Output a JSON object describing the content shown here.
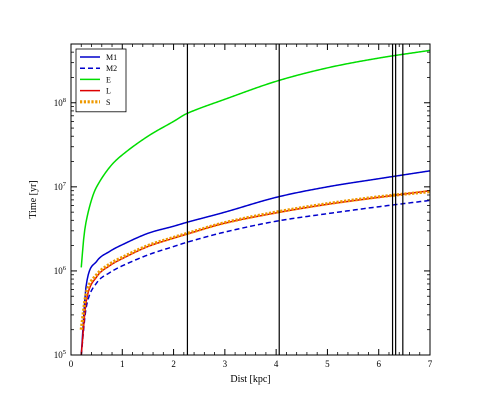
{
  "chart_data": {
    "type": "line",
    "title": "",
    "xlabel": "Dist [kpc]",
    "ylabel": "Time [yr]",
    "xlim": [
      0,
      7
    ],
    "ylim": [
      100000,
      500000000
    ],
    "y_scale": "log",
    "grid": false,
    "legend_position": "top-left",
    "x_ticks": [
      0,
      1,
      2,
      3,
      4,
      5,
      6,
      7
    ],
    "x_tick_labels": [
      "0",
      "1",
      "2",
      "3",
      "4",
      "5",
      "6",
      "7"
    ],
    "y_ticks": [
      100000,
      1000000,
      10000000,
      100000000
    ],
    "y_tick_labels": [
      {
        "base": "10",
        "exp": "5"
      },
      {
        "base": "10",
        "exp": "6"
      },
      {
        "base": "10",
        "exp": "7"
      },
      {
        "base": "10",
        "exp": "8"
      }
    ],
    "vertical_lines": [
      2.27,
      4.06,
      6.27,
      6.33,
      6.47
    ],
    "series": [
      {
        "name": "M1",
        "color": "#0000cc",
        "dash": "solid",
        "x": [
          0.2,
          0.3,
          0.5,
          0.75,
          1.0,
          1.5,
          2.0,
          2.27,
          3.0,
          4.0,
          5.0,
          6.0,
          7.0
        ],
        "y": [
          100000,
          700000,
          1300000,
          1700000,
          2050000,
          2800000,
          3400000,
          3800000,
          5000000,
          7500000,
          10000000,
          12500000,
          15500000
        ]
      },
      {
        "name": "M2",
        "color": "#0000cc",
        "dash": "dashed",
        "x": [
          0.2,
          0.3,
          0.5,
          0.75,
          1.0,
          1.5,
          2.0,
          2.27,
          3.0,
          4.0,
          5.0,
          6.0,
          7.0
        ],
        "y": [
          100000,
          380000,
          720000,
          950000,
          1150000,
          1550000,
          1950000,
          2200000,
          2900000,
          3900000,
          4800000,
          5800000,
          6900000
        ]
      },
      {
        "name": "E",
        "color": "#00dd00",
        "dash": "solid",
        "x": [
          0.2,
          0.25,
          0.3,
          0.4,
          0.5,
          0.75,
          1.0,
          1.5,
          2.0,
          2.27,
          3.0,
          4.0,
          5.0,
          6.0,
          7.0
        ],
        "y": [
          1100000,
          2500000,
          4000000,
          7000000,
          10000000,
          17000000,
          24000000,
          40000000,
          60000000,
          75000000,
          110000000,
          180000000,
          260000000,
          340000000,
          420000000
        ]
      },
      {
        "name": "L",
        "color": "#dd0000",
        "dash": "solid",
        "x": [
          0.2,
          0.3,
          0.5,
          0.75,
          1.0,
          1.5,
          2.0,
          2.27,
          3.0,
          4.0,
          5.0,
          6.0,
          7.0
        ],
        "y": [
          100000,
          450000,
          850000,
          1150000,
          1400000,
          1950000,
          2450000,
          2750000,
          3700000,
          4900000,
          6200000,
          7500000,
          9000000
        ]
      },
      {
        "name": "S",
        "color": "#ee9900",
        "dash": "dotted",
        "x": [
          0.2,
          0.3,
          0.5,
          0.75,
          1.0,
          1.5,
          2.0,
          2.27,
          3.0,
          4.0,
          5.0,
          6.0,
          7.0
        ],
        "y": [
          200000,
          550000,
          900000,
          1200000,
          1450000,
          2000000,
          2500000,
          2800000,
          3750000,
          5000000,
          6300000,
          7600000,
          8800000
        ]
      }
    ]
  }
}
